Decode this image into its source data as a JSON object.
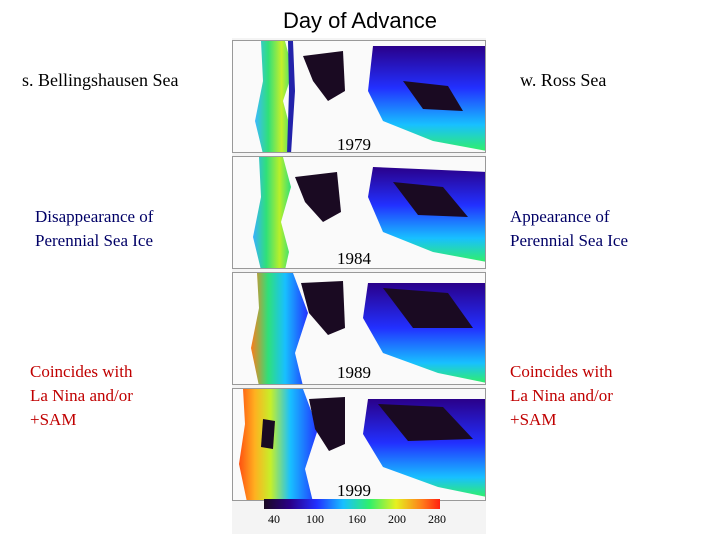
{
  "title": "Day of Advance",
  "left_region": "s. Bellingshausen Sea",
  "right_region": "w. Ross Sea",
  "left_notes": {
    "disappearance": "Disappearance of\nPerennial Sea Ice",
    "coincides": "Coincides with\nLa Nina and/or\n+SAM"
  },
  "right_notes": {
    "appearance": "Appearance of\nPerennial Sea Ice",
    "coincides": "Coincides with\nLa Nina and/or\n+SAM"
  },
  "panels": [
    {
      "year": "1979"
    },
    {
      "year": "1984"
    },
    {
      "year": "1989"
    },
    {
      "year": "1999"
    }
  ],
  "colorbar": {
    "ticks": [
      "40",
      "100",
      "160",
      "200",
      "280"
    ]
  },
  "colors": {
    "red_text": "#c00000",
    "navy_text": "#000066"
  }
}
